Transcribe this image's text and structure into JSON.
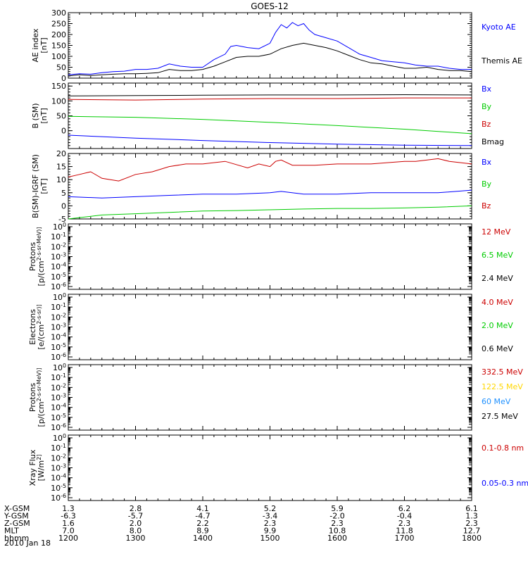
{
  "title": "GOES-12",
  "date": "2010 Jan 18",
  "colors": {
    "black": "#000000",
    "blue": "#0000ff",
    "red": "#cc0000",
    "green": "#00cc00",
    "yellow": "#ffd700",
    "cyan": "#1e90ff"
  },
  "chart_data": [
    {
      "type": "line",
      "ylabel": "AE index [nT]",
      "ylim": [
        0,
        300
      ],
      "yticks": [
        "300",
        "250",
        "200",
        "150",
        "100",
        "50",
        "0"
      ],
      "series": [
        {
          "name": "Kyoto AE",
          "color": "blue",
          "x": [
            1200,
            1210,
            1220,
            1230,
            1240,
            1250,
            1300,
            1310,
            1320,
            1330,
            1340,
            1350,
            1400,
            1410,
            1420,
            1425,
            1430,
            1440,
            1450,
            1500,
            1505,
            1510,
            1515,
            1520,
            1525,
            1530,
            1535,
            1540,
            1550,
            1600,
            1610,
            1620,
            1630,
            1640,
            1650,
            1700,
            1710,
            1720,
            1730,
            1740,
            1750,
            1800
          ],
          "y": [
            15,
            20,
            18,
            25,
            30,
            32,
            40,
            40,
            45,
            65,
            55,
            50,
            50,
            85,
            110,
            145,
            150,
            140,
            135,
            160,
            210,
            245,
            230,
            255,
            240,
            250,
            220,
            200,
            185,
            170,
            140,
            110,
            95,
            80,
            75,
            70,
            60,
            55,
            55,
            45,
            40,
            40
          ]
        },
        {
          "name": "Themis AE",
          "color": "black",
          "x": [
            1200,
            1210,
            1220,
            1230,
            1240,
            1250,
            1300,
            1310,
            1320,
            1330,
            1340,
            1350,
            1400,
            1410,
            1420,
            1430,
            1440,
            1450,
            1500,
            1510,
            1520,
            1530,
            1540,
            1550,
            1600,
            1610,
            1620,
            1630,
            1640,
            1650,
            1700,
            1710,
            1720,
            1730,
            1740,
            1750,
            1800
          ],
          "y": [
            10,
            15,
            12,
            15,
            18,
            20,
            20,
            22,
            25,
            40,
            35,
            35,
            40,
            55,
            75,
            95,
            100,
            100,
            110,
            135,
            150,
            160,
            150,
            140,
            125,
            105,
            85,
            70,
            65,
            55,
            45,
            45,
            50,
            40,
            35,
            35,
            30
          ]
        }
      ]
    },
    {
      "type": "line",
      "ylabel": "B (SM) [nT]",
      "ylim": [
        -60,
        160
      ],
      "yticks": [
        "150",
        "100",
        "50",
        "0"
      ],
      "series": [
        {
          "name": "Bx",
          "color": "blue",
          "x": [
            1200,
            1300,
            1400,
            1500,
            1600,
            1700,
            1800
          ],
          "y": [
            -15,
            -25,
            -33,
            -40,
            -45,
            -49,
            -50
          ]
        },
        {
          "name": "By",
          "color": "green",
          "x": [
            1200,
            1300,
            1400,
            1500,
            1600,
            1700,
            1800
          ],
          "y": [
            48,
            45,
            38,
            28,
            17,
            5,
            -10
          ]
        },
        {
          "name": "Bz",
          "color": "red",
          "x": [
            1200,
            1300,
            1400,
            1500,
            1600,
            1700,
            1800
          ],
          "y": [
            105,
            103,
            106,
            108,
            108,
            110,
            110
          ]
        },
        {
          "name": "Bmag",
          "color": "black",
          "x": [
            1200,
            1300,
            1400,
            1500,
            1600,
            1700,
            1800
          ],
          "y": [
            117,
            118,
            119,
            120,
            120,
            121,
            120
          ]
        }
      ]
    },
    {
      "type": "line",
      "ylabel": "B(SM)-IGRF (SM) [nT]",
      "ylim": [
        -5,
        20
      ],
      "yticks": [
        "20",
        "15",
        "10",
        "5",
        "0",
        "-5"
      ],
      "series": [
        {
          "name": "Bx",
          "color": "blue",
          "x": [
            1200,
            1230,
            1300,
            1330,
            1400,
            1430,
            1500,
            1510,
            1530,
            1600,
            1630,
            1700,
            1730,
            1800
          ],
          "y": [
            3.5,
            3,
            3.5,
            4,
            4.5,
            4.5,
            5,
            5.5,
            4.5,
            4.5,
            5,
            5,
            5,
            6
          ]
        },
        {
          "name": "By",
          "color": "green",
          "x": [
            1200,
            1230,
            1300,
            1330,
            1400,
            1430,
            1500,
            1530,
            1600,
            1630,
            1700,
            1730,
            1800
          ],
          "y": [
            -5,
            -3.5,
            -3,
            -2.5,
            -2,
            -1.8,
            -1.5,
            -1.2,
            -1,
            -1,
            -0.8,
            -0.5,
            0
          ]
        },
        {
          "name": "Bz",
          "color": "red",
          "x": [
            1200,
            1210,
            1220,
            1230,
            1245,
            1300,
            1315,
            1330,
            1345,
            1400,
            1420,
            1440,
            1450,
            1500,
            1505,
            1510,
            1520,
            1540,
            1600,
            1630,
            1700,
            1710,
            1730,
            1740,
            1800
          ],
          "y": [
            11,
            12,
            13,
            10.5,
            9.5,
            12,
            13,
            15,
            16,
            16,
            17,
            14.5,
            16,
            15,
            17,
            17.5,
            15.5,
            15.5,
            16,
            16,
            17,
            17,
            18,
            17,
            16
          ]
        }
      ]
    },
    {
      "type": "line",
      "log_scale": true,
      "ylabel_top": "Protons",
      "ylabel": "[p/(cm^2-s-sr-MeV)]",
      "yticks": [
        "10^0",
        "10^-1",
        "10^-2",
        "10^-3",
        "10^-4",
        "10^-5",
        "10^-6"
      ],
      "series": [
        {
          "name": "12 MeV",
          "color": "red"
        },
        {
          "name": "6.5 MeV",
          "color": "green"
        },
        {
          "name": "2.4 MeV",
          "color": "black"
        }
      ]
    },
    {
      "type": "line",
      "log_scale": true,
      "ylabel_top": "Electrons",
      "ylabel": "[e/(cm^2-s-sr)]",
      "yticks": [
        "10^0",
        "10^-1",
        "10^-2",
        "10^-3",
        "10^-4",
        "10^-5",
        "10^-6"
      ],
      "series": [
        {
          "name": "4.0 MeV",
          "color": "red"
        },
        {
          "name": "2.0 MeV",
          "color": "green"
        },
        {
          "name": "0.6 MeV",
          "color": "black"
        }
      ]
    },
    {
      "type": "line",
      "log_scale": true,
      "ylabel_top": "Protons",
      "ylabel": "[p/(cm^2-s-sr-MeV)]",
      "yticks": [
        "10^0",
        "10^-1",
        "10^-2",
        "10^-3",
        "10^-4",
        "10^-5",
        "10^-6"
      ],
      "series": [
        {
          "name": "332.5 MeV",
          "color": "red"
        },
        {
          "name": "122.5 MeV",
          "color": "yellow"
        },
        {
          "name": "60 MeV",
          "color": "cyan"
        },
        {
          "name": "27.5 MeV",
          "color": "black"
        }
      ]
    },
    {
      "type": "line",
      "log_scale": true,
      "ylabel_top": "Xray Flux",
      "ylabel": "[W/m^2]",
      "yticks": [
        "10^0",
        "10^-1",
        "10^-2",
        "10^-3",
        "10^-4",
        "10^-5",
        "10^-6"
      ],
      "series": [
        {
          "name": "0.1-0.8 nm",
          "color": "red"
        },
        {
          "name": "0.05-0.3 nm",
          "color": "blue"
        }
      ]
    }
  ],
  "xaxis": {
    "xlim": [
      1200,
      1800
    ],
    "ticks": [
      1200,
      1300,
      1400,
      1500,
      1600,
      1700,
      1800
    ],
    "rows": [
      {
        "label": "X-GSM",
        "values": [
          "1.3",
          "2.8",
          "4.1",
          "5.2",
          "5.9",
          "6.2",
          "6.1"
        ]
      },
      {
        "label": "Y-GSM",
        "values": [
          "-6.3",
          "-5.7",
          "-4.7",
          "-3.4",
          "-2.0",
          "-0.4",
          "1.3"
        ]
      },
      {
        "label": "Z-GSM",
        "values": [
          "1.6",
          "2.0",
          "2.2",
          "2.3",
          "2.3",
          "2.3",
          "2.3"
        ]
      },
      {
        "label": "MLT",
        "values": [
          "7.0",
          "8.0",
          "8.9",
          "9.9",
          "10.8",
          "11.8",
          "12.7"
        ]
      },
      {
        "label": "hhmm",
        "values": [
          "1200",
          "1300",
          "1400",
          "1500",
          "1600",
          "1700",
          "1800"
        ]
      }
    ]
  }
}
